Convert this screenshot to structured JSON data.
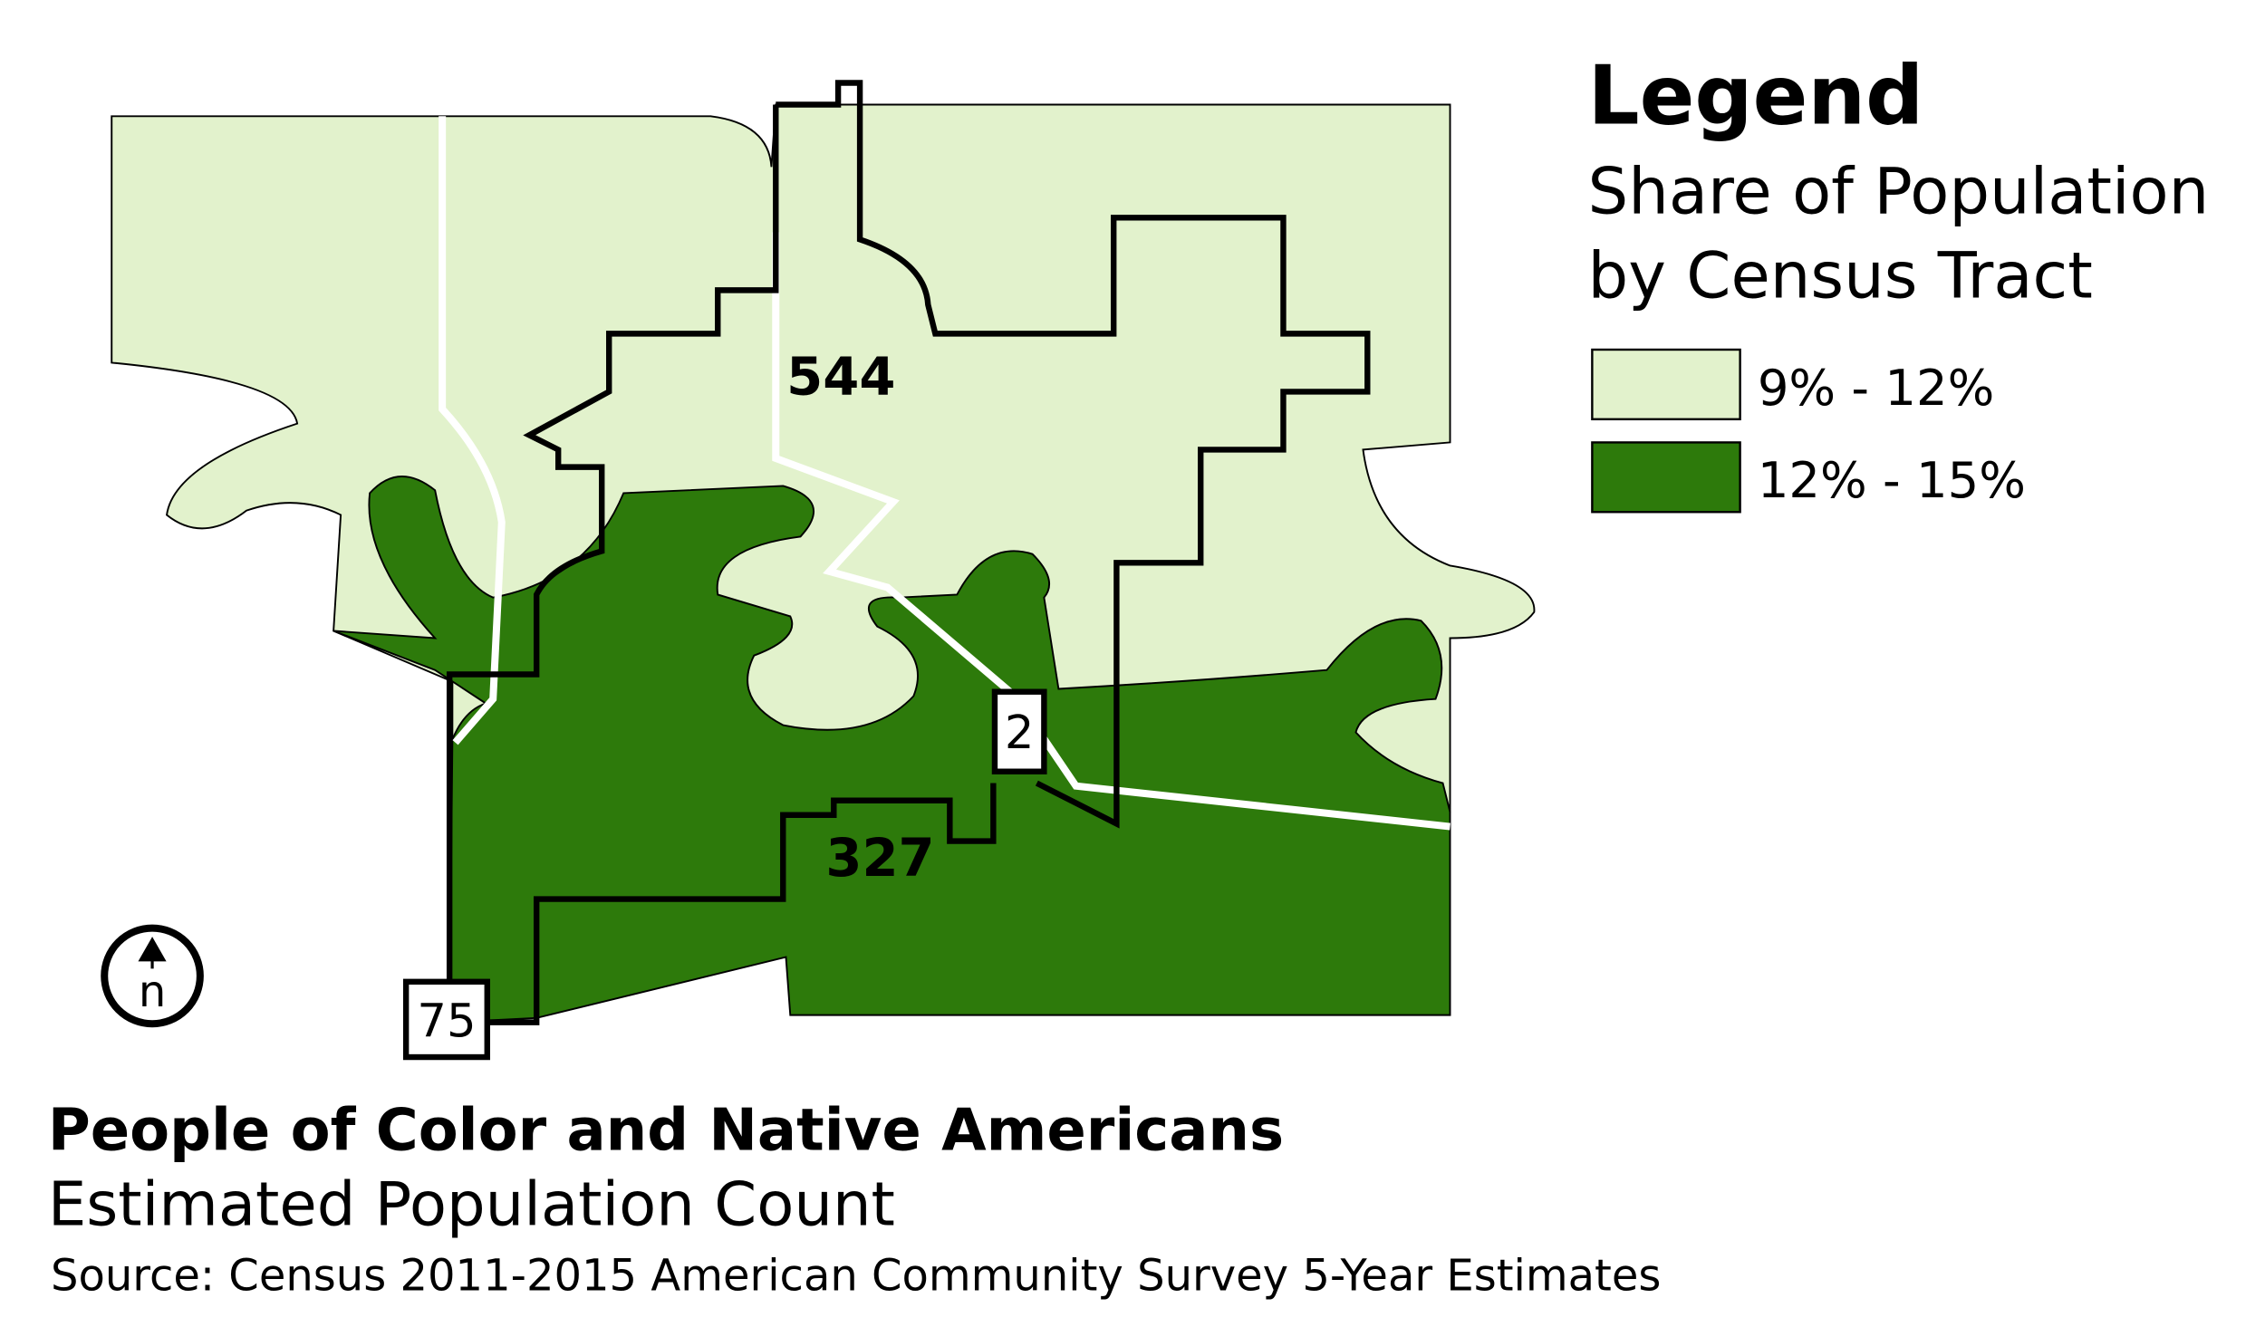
{
  "legend": {
    "title": "Legend",
    "subtitle": [
      "Share of Population",
      "by Census Tract"
    ],
    "items": [
      {
        "label": "9% - 12%",
        "color": "#e2f2cc"
      },
      {
        "label": "12% - 15%",
        "color": "#2d7a0b"
      }
    ]
  },
  "tracts": [
    {
      "label": "544"
    },
    {
      "label": "327"
    }
  ],
  "routes": [
    {
      "label": "75"
    },
    {
      "label": "2"
    }
  ],
  "north_arrow": {
    "label": "n"
  },
  "title": "People of Color and Native Americans",
  "subtitle": "Estimated Population Count",
  "source": "Source: Census 2011-2015 American Community Survey 5-Year Estimates"
}
